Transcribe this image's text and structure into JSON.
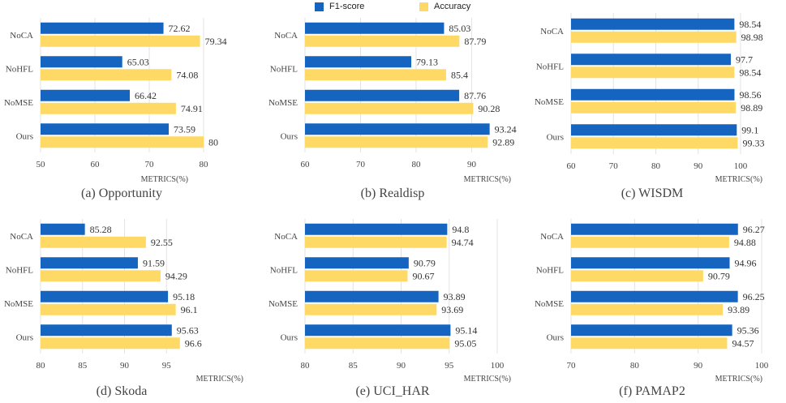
{
  "legend": {
    "f1_label": "F1-score",
    "acc_label": "Accuracy",
    "f1_color": "#1565c0",
    "acc_color": "#ffd966"
  },
  "chart_data": [
    {
      "type": "bar",
      "orientation": "horizontal",
      "title": "(a) Opportunity",
      "xlabel": "METRICS(%)",
      "categories": [
        "NoCA",
        "NoHFL",
        "NoMSE",
        "Ours"
      ],
      "series": [
        {
          "name": "F1-score",
          "values": [
            72.62,
            65.03,
            66.42,
            73.59
          ]
        },
        {
          "name": "Accuracy",
          "values": [
            79.34,
            74.08,
            74.91,
            80
          ]
        }
      ],
      "xlim": [
        50,
        80
      ],
      "xticks": [
        50,
        60,
        70,
        80
      ],
      "labels": [
        "72.62",
        "79.34",
        "65.03",
        "74.08",
        "66.42",
        "74.91",
        "73.59",
        "80"
      ]
    },
    {
      "type": "bar",
      "orientation": "horizontal",
      "title": "(b) Realdisp",
      "xlabel": "METRICS(%)",
      "categories": [
        "NoCA",
        "NoHFL",
        "NoMSE",
        "Ours"
      ],
      "series": [
        {
          "name": "F1-score",
          "values": [
            85.03,
            79.13,
            87.76,
            93.24
          ]
        },
        {
          "name": "Accuracy",
          "values": [
            87.79,
            85.4,
            90.28,
            92.89
          ]
        }
      ],
      "xlim": [
        60,
        93
      ],
      "xticks": [
        60,
        70,
        80,
        90
      ],
      "labels": [
        "85.03",
        "87.79",
        "79.13",
        "85.4",
        "87.76",
        "90.28",
        "93.24",
        "92.89"
      ]
    },
    {
      "type": "bar",
      "orientation": "horizontal",
      "title": "(c) WISDM",
      "xlabel": "METRICS(%)",
      "categories": [
        "NoCA",
        "NoHFL",
        "NoMSE",
        "Ours"
      ],
      "series": [
        {
          "name": "F1-score",
          "values": [
            98.54,
            97.7,
            98.56,
            99.1
          ]
        },
        {
          "name": "Accuracy",
          "values": [
            98.98,
            98.54,
            98.89,
            99.33
          ]
        }
      ],
      "xlim": [
        60,
        100
      ],
      "xticks": [
        60,
        70,
        80,
        90,
        100
      ],
      "labels": [
        "98.54",
        "98.98",
        "97.7",
        "98.54",
        "98.56",
        "98.89",
        "99.1",
        "99.33"
      ]
    },
    {
      "type": "bar",
      "orientation": "horizontal",
      "title": "(d) Skoda",
      "xlabel": "METRICS(%)",
      "categories": [
        "NoCA",
        "NoHFL",
        "NoMSE",
        "Ours"
      ],
      "series": [
        {
          "name": "F1-score",
          "values": [
            85.28,
            91.59,
            95.18,
            95.63
          ]
        },
        {
          "name": "Accuracy",
          "values": [
            92.55,
            94.29,
            96.1,
            96.6
          ]
        }
      ],
      "xlim": [
        80,
        100
      ],
      "xticks": [
        80,
        85,
        90,
        95
      ],
      "labels": [
        "85.28",
        "92.55",
        "91.59",
        "94.29",
        "95.18",
        "96.1",
        "95.63",
        "96.6"
      ]
    },
    {
      "type": "bar",
      "orientation": "horizontal",
      "title": "(e) UCI_HAR",
      "xlabel": "METRICS(%)",
      "categories": [
        "NoCA",
        "NoHFL",
        "NoMSE",
        "Ours"
      ],
      "series": [
        {
          "name": "F1-score",
          "values": [
            94.8,
            90.79,
            93.89,
            95.14
          ]
        },
        {
          "name": "Accuracy",
          "values": [
            94.74,
            90.67,
            93.69,
            95.05
          ]
        }
      ],
      "xlim": [
        80,
        100
      ],
      "xticks": [
        80,
        85,
        90,
        95,
        100
      ],
      "labels": [
        "94.8",
        "94.74",
        "90.79",
        "90.67",
        "93.89",
        "93.69",
        "95.14",
        "95.05"
      ]
    },
    {
      "type": "bar",
      "orientation": "horizontal",
      "title": "(f) PAMAP2",
      "xlabel": "METRICS(%)",
      "categories": [
        "NoCA",
        "NoHFL",
        "NoMSE",
        "Ours"
      ],
      "series": [
        {
          "name": "F1-score",
          "values": [
            96.27,
            94.96,
            96.25,
            95.36
          ]
        },
        {
          "name": "Accuracy",
          "values": [
            94.88,
            90.79,
            93.89,
            94.57
          ]
        }
      ],
      "xlim": [
        70,
        100
      ],
      "xticks": [
        70,
        80,
        90,
        100
      ],
      "labels": [
        "96.27",
        "94.88",
        "94.96",
        "90.79",
        "96.25",
        "93.89",
        "95.36",
        "94.57"
      ]
    }
  ]
}
